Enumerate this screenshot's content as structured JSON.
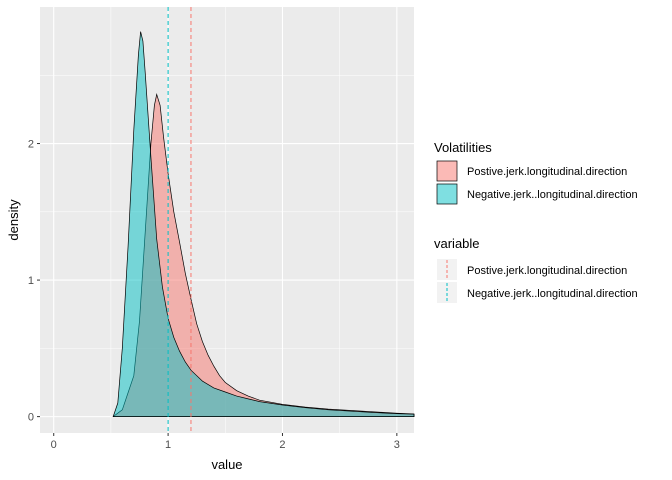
{
  "chart_data": {
    "type": "area",
    "title": "",
    "xlabel": "value",
    "ylabel": "density",
    "xlim": [
      -0.12,
      3.15
    ],
    "ylim": [
      -0.12,
      3.0
    ],
    "x_ticks": [
      0,
      1,
      2,
      3
    ],
    "x_tick_labels": [
      "0",
      "1",
      "2",
      "3"
    ],
    "y_ticks": [
      0,
      1,
      2
    ],
    "y_tick_labels": [
      "0",
      "1",
      "2"
    ],
    "grid": true,
    "background": "#ebebeb",
    "series": [
      {
        "name": "Postive.jerk.longitudinal.direction",
        "fill": "#f8766d",
        "opacity": 0.5,
        "mean": 1.2,
        "points": [
          [
            0.52,
            0
          ],
          [
            0.6,
            0.05
          ],
          [
            0.7,
            0.3
          ],
          [
            0.75,
            0.7
          ],
          [
            0.8,
            1.35
          ],
          [
            0.85,
            2.0
          ],
          [
            0.88,
            2.28
          ],
          [
            0.9,
            2.36
          ],
          [
            0.93,
            2.28
          ],
          [
            0.96,
            2.05
          ],
          [
            1.0,
            1.78
          ],
          [
            1.05,
            1.5
          ],
          [
            1.1,
            1.28
          ],
          [
            1.15,
            1.05
          ],
          [
            1.2,
            0.86
          ],
          [
            1.25,
            0.68
          ],
          [
            1.3,
            0.55
          ],
          [
            1.35,
            0.45
          ],
          [
            1.4,
            0.37
          ],
          [
            1.45,
            0.3
          ],
          [
            1.5,
            0.25
          ],
          [
            1.6,
            0.19
          ],
          [
            1.7,
            0.15
          ],
          [
            1.8,
            0.12
          ],
          [
            2.0,
            0.09
          ],
          [
            2.2,
            0.07
          ],
          [
            2.4,
            0.055
          ],
          [
            2.6,
            0.045
          ],
          [
            2.8,
            0.035
          ],
          [
            3.0,
            0.025
          ],
          [
            3.15,
            0.02
          ]
        ]
      },
      {
        "name": "Negative.jerk..longitudinal.direction",
        "fill": "#00bfc4",
        "opacity": 0.5,
        "mean": 1.0,
        "points": [
          [
            0.52,
            0
          ],
          [
            0.56,
            0.1
          ],
          [
            0.6,
            0.5
          ],
          [
            0.65,
            1.25
          ],
          [
            0.7,
            2.1
          ],
          [
            0.74,
            2.65
          ],
          [
            0.76,
            2.82
          ],
          [
            0.78,
            2.75
          ],
          [
            0.8,
            2.52
          ],
          [
            0.85,
            1.9
          ],
          [
            0.9,
            1.3
          ],
          [
            0.95,
            0.95
          ],
          [
            1.0,
            0.72
          ],
          [
            1.05,
            0.58
          ],
          [
            1.1,
            0.48
          ],
          [
            1.15,
            0.4
          ],
          [
            1.2,
            0.34
          ],
          [
            1.3,
            0.26
          ],
          [
            1.4,
            0.21
          ],
          [
            1.5,
            0.18
          ],
          [
            1.6,
            0.15
          ],
          [
            1.7,
            0.13
          ],
          [
            1.8,
            0.11
          ],
          [
            2.0,
            0.085
          ],
          [
            2.2,
            0.065
          ],
          [
            2.4,
            0.05
          ],
          [
            2.6,
            0.04
          ],
          [
            2.8,
            0.03
          ],
          [
            3.0,
            0.022
          ],
          [
            3.15,
            0.018
          ]
        ]
      }
    ],
    "legends": [
      {
        "title": "Volatilities",
        "entries": [
          "Postive.jerk.longitudinal.direction",
          "Negative.jerk..longitudinal.direction"
        ],
        "placement": "right"
      },
      {
        "title": "variable",
        "entries": [
          "Postive.jerk.longitudinal.direction",
          "Negative.jerk..longitudinal.direction"
        ],
        "placement": "right"
      }
    ]
  }
}
